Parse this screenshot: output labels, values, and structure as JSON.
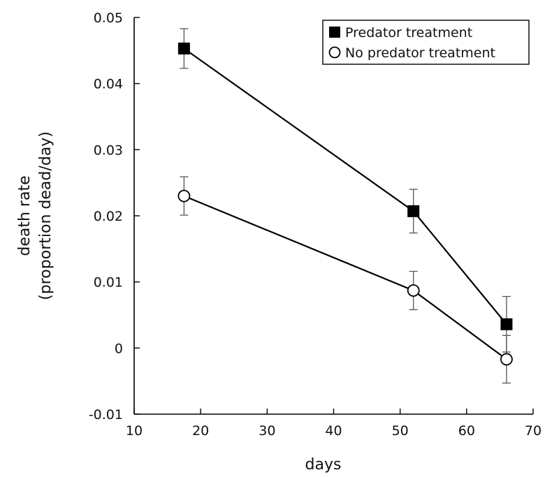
{
  "chart_data": {
    "type": "line",
    "xlabel": "days",
    "ylabel_lines": [
      "death rate",
      "(proportion dead/day)"
    ],
    "xlim": [
      10,
      70
    ],
    "ylim": [
      -0.01,
      0.05
    ],
    "xticks": [
      10,
      20,
      30,
      40,
      50,
      60,
      70
    ],
    "xtick_labels": [
      "10",
      "20",
      "30",
      "40",
      "50",
      "60",
      "70"
    ],
    "yticks": [
      -0.01,
      0,
      0.01,
      0.02,
      0.03,
      0.04,
      0.05
    ],
    "ytick_labels": [
      "-0.01",
      "0",
      "0.01",
      "0.02",
      "0.03",
      "0.04",
      "0.05"
    ],
    "grid": false,
    "legend_position": "top-right",
    "series": [
      {
        "name": "Predator treatment",
        "marker": "filled-square",
        "color": "#000000",
        "x": [
          17.5,
          52,
          66
        ],
        "y": [
          0.0453,
          0.0207,
          0.0036
        ],
        "error": [
          0.003,
          0.0033,
          0.0042
        ]
      },
      {
        "name": "No predator treatment",
        "marker": "open-circle",
        "color": "#000000",
        "x": [
          17.5,
          52,
          66
        ],
        "y": [
          0.023,
          0.0087,
          -0.0017
        ],
        "error": [
          0.0029,
          0.0029,
          0.0036
        ]
      }
    ]
  }
}
